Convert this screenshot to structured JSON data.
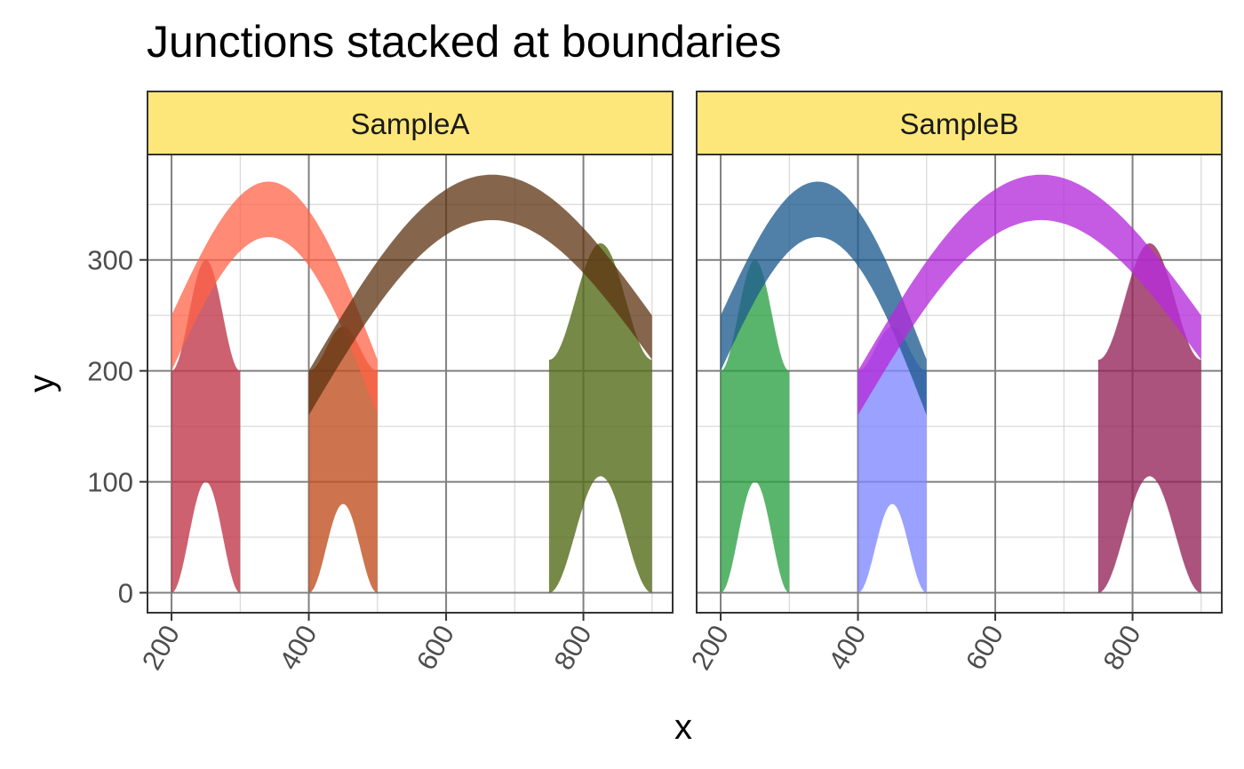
{
  "chart_data": {
    "type": "area",
    "title": "Junctions stacked at boundaries",
    "xlabel": "x",
    "ylabel": "y",
    "xlim": [
      165,
      930
    ],
    "ylim": [
      -18,
      395
    ],
    "x_ticks": [
      200,
      400,
      600,
      800
    ],
    "x_minor_ticks": [
      300,
      500,
      700,
      900
    ],
    "y_ticks": [
      0,
      100,
      200,
      300
    ],
    "y_minor_ticks": [
      50,
      150,
      250,
      350
    ],
    "grid": true,
    "theme": "bw",
    "strip_color": "#FEE77A",
    "panels": [
      {
        "name": "SampleA",
        "shapes": [
          {
            "kind": "arch",
            "x0": 200,
            "x1": 300,
            "lower_start": 0,
            "lower_peak": 100,
            "upper_start": 200,
            "upper_peak": 300,
            "color": "#C0394B",
            "opacity": 0.8
          },
          {
            "kind": "arch",
            "x0": 400,
            "x1": 500,
            "lower_start": 0,
            "lower_peak": 80,
            "upper_start": 200,
            "upper_peak": 240,
            "color": "#C05020",
            "opacity": 0.8
          },
          {
            "kind": "arch",
            "x0": 750,
            "x1": 900,
            "lower_start": 0,
            "lower_peak": 105,
            "upper_start": 210,
            "upper_peak": 315,
            "color": "#556B18",
            "opacity": 0.8
          },
          {
            "kind": "ribbon",
            "x0": 200,
            "x1": 500,
            "lower_start": 200,
            "lower_end": 160,
            "lower_peak": 320,
            "upper_start": 250,
            "upper_end": 210,
            "upper_peak": 370,
            "color": "#FF6347",
            "opacity": 0.75
          },
          {
            "kind": "ribbon",
            "x0": 400,
            "x1": 900,
            "lower_start": 160,
            "lower_end": 210,
            "lower_peak": 335,
            "upper_start": 200,
            "upper_end": 250,
            "upper_peak": 376,
            "color": "#5C3311",
            "opacity": 0.75
          }
        ]
      },
      {
        "name": "SampleB",
        "shapes": [
          {
            "kind": "arch",
            "x0": 200,
            "x1": 300,
            "lower_start": 0,
            "lower_peak": 100,
            "upper_start": 200,
            "upper_peak": 300,
            "color": "#2CA043",
            "opacity": 0.78
          },
          {
            "kind": "arch",
            "x0": 400,
            "x1": 500,
            "lower_start": 0,
            "lower_peak": 80,
            "upper_start": 200,
            "upper_peak": 240,
            "color": "#7F86FF",
            "opacity": 0.78
          },
          {
            "kind": "arch",
            "x0": 750,
            "x1": 900,
            "lower_start": 0,
            "lower_peak": 105,
            "upper_start": 210,
            "upper_peak": 315,
            "color": "#932257",
            "opacity": 0.78
          },
          {
            "kind": "ribbon",
            "x0": 200,
            "x1": 500,
            "lower_start": 200,
            "lower_end": 160,
            "lower_peak": 320,
            "upper_start": 250,
            "upper_end": 210,
            "upper_peak": 370,
            "color": "#1F5C8F",
            "opacity": 0.78
          },
          {
            "kind": "ribbon",
            "x0": 400,
            "x1": 900,
            "lower_start": 160,
            "lower_end": 210,
            "lower_peak": 335,
            "upper_start": 200,
            "upper_end": 250,
            "upper_peak": 376,
            "color": "#B52CDB",
            "opacity": 0.78
          }
        ]
      }
    ]
  }
}
